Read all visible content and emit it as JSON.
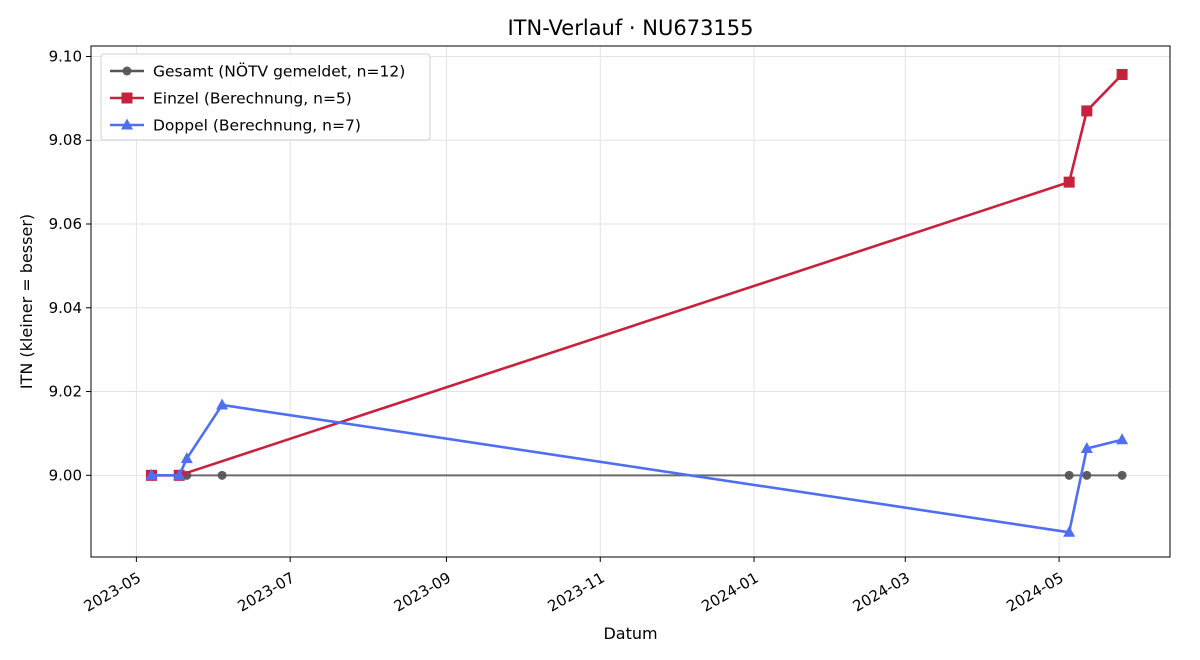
{
  "chart_data": {
    "type": "line",
    "title": "ITN-Verlauf · NU673155",
    "xlabel": "Datum",
    "ylabel": "ITN  (kleiner = besser)",
    "x_ticks": [
      "2023-05",
      "2023-07",
      "2023-09",
      "2023-11",
      "2024-01",
      "2024-03",
      "2024-05"
    ],
    "y_ticks": [
      "9.00",
      "9.02",
      "9.04",
      "9.06",
      "9.08",
      "9.10"
    ],
    "xlim": [
      "2023-04-13",
      "2024-06-14"
    ],
    "ylim": [
      8.9805,
      9.1025
    ],
    "grid": true,
    "legend_position": "top-left",
    "series": [
      {
        "name": "Gesamt (NÖTV gemeldet, n=12)",
        "color": "#555555",
        "marker": "circle",
        "points": [
          {
            "x": "2023-05-07",
            "y": 9.0
          },
          {
            "x": "2023-05-18",
            "y": 9.0
          },
          {
            "x": "2023-05-21",
            "y": 9.0
          },
          {
            "x": "2023-06-04",
            "y": 9.0
          },
          {
            "x": "2024-05-05",
            "y": 9.0
          },
          {
            "x": "2024-05-12",
            "y": 9.0
          },
          {
            "x": "2024-05-26",
            "y": 9.0
          }
        ]
      },
      {
        "name": "Einzel (Berechnung, n=5)",
        "color": "#c8213e",
        "marker": "square",
        "points": [
          {
            "x": "2023-05-07",
            "y": 9.0
          },
          {
            "x": "2023-05-18",
            "y": 9.0
          },
          {
            "x": "2024-05-05",
            "y": 9.07
          },
          {
            "x": "2024-05-12",
            "y": 9.087
          },
          {
            "x": "2024-05-26",
            "y": 9.0957
          }
        ]
      },
      {
        "name": "Doppel (Berechnung, n=7)",
        "color": "#4f6ff0",
        "marker": "triangle",
        "points": [
          {
            "x": "2023-05-07",
            "y": 9.0
          },
          {
            "x": "2023-05-18",
            "y": 9.0
          },
          {
            "x": "2023-05-21",
            "y": 9.004
          },
          {
            "x": "2023-06-04",
            "y": 9.0168
          },
          {
            "x": "2024-05-05",
            "y": 8.9864
          },
          {
            "x": "2024-05-12",
            "y": 9.0064
          },
          {
            "x": "2024-05-26",
            "y": 9.0085
          }
        ]
      }
    ]
  }
}
